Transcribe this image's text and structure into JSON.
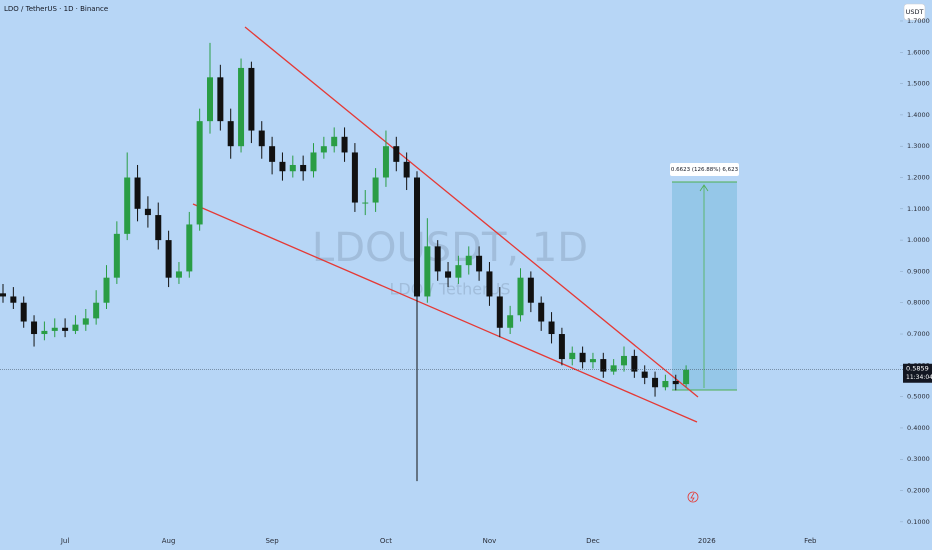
{
  "chart_data": {
    "type": "candlestick",
    "title": "LDO / TetherUS · 1D · Binance",
    "currency": "USDT",
    "watermark": "LDOUSDT, 1D",
    "watermark_subtitle": "LDO / TetherUS",
    "countdown": "11:34:04",
    "measure_label": "0.6623 (126.88%) 6,623",
    "up_color": "#2a9d45",
    "down_color": "#111111",
    "categories": [
      null,
      null,
      null,
      null,
      null,
      null,
      "Jul",
      null,
      null,
      null,
      null,
      null,
      null,
      null,
      null,
      null,
      "Aug",
      null,
      null,
      null,
      null,
      null,
      null,
      null,
      null,
      null,
      "Sep",
      null,
      null,
      null,
      null,
      null,
      null,
      null,
      null,
      null,
      null,
      "Oct",
      null,
      null,
      null,
      null,
      null,
      null,
      null,
      null,
      null,
      "Nov",
      null,
      null,
      null,
      null,
      null,
      null,
      null,
      null,
      null,
      "Dec",
      null,
      null,
      null,
      null,
      null,
      null,
      null,
      null,
      null,
      null,
      "2026",
      null,
      null,
      null,
      null,
      null,
      null,
      null,
      null,
      null,
      "Feb"
    ],
    "open": [
      0.83,
      0.82,
      0.8,
      0.74,
      0.7,
      0.71,
      0.72,
      0.71,
      0.73,
      0.75,
      0.8,
      0.88,
      1.02,
      1.2,
      1.1,
      1.08,
      1.0,
      0.88,
      0.9,
      1.05,
      1.38,
      1.52,
      1.38,
      1.3,
      1.55,
      1.35,
      1.3,
      1.25,
      1.22,
      1.24,
      1.22,
      1.28,
      1.3,
      1.33,
      1.28,
      1.12,
      1.12,
      1.2,
      1.3,
      1.25,
      1.2,
      0.82,
      0.98,
      0.9,
      0.88,
      0.92,
      0.95,
      0.9,
      0.82,
      0.72,
      0.76,
      0.88,
      0.8,
      0.74,
      0.7,
      0.62,
      0.64,
      0.61,
      0.62,
      0.58,
      0.6,
      0.63,
      0.58,
      0.56,
      0.53,
      0.55,
      0.54,
      null,
      null,
      null,
      null,
      null,
      null,
      null,
      null,
      null,
      null,
      null,
      null
    ],
    "high": [
      0.86,
      0.85,
      0.82,
      0.76,
      0.74,
      0.75,
      0.75,
      0.76,
      0.78,
      0.84,
      0.92,
      1.06,
      1.28,
      1.24,
      1.14,
      1.12,
      1.03,
      0.93,
      1.09,
      1.42,
      1.63,
      1.56,
      1.42,
      1.58,
      1.57,
      1.38,
      1.33,
      1.28,
      1.27,
      1.27,
      1.31,
      1.33,
      1.36,
      1.36,
      1.31,
      1.16,
      1.23,
      1.35,
      1.33,
      1.28,
      1.22,
      1.07,
      1.0,
      0.93,
      0.95,
      0.98,
      0.98,
      0.93,
      0.85,
      0.79,
      0.91,
      0.9,
      0.82,
      0.77,
      0.72,
      0.66,
      0.66,
      0.64,
      0.64,
      0.62,
      0.66,
      0.65,
      0.6,
      0.58,
      0.57,
      0.57,
      0.6,
      null,
      null,
      null,
      null,
      null,
      null,
      null,
      null,
      null,
      null,
      null,
      null
    ],
    "low": [
      0.8,
      0.78,
      0.72,
      0.66,
      0.68,
      0.69,
      0.69,
      0.7,
      0.71,
      0.73,
      0.78,
      0.86,
      1.0,
      1.06,
      1.04,
      0.97,
      0.85,
      0.86,
      0.88,
      1.03,
      1.34,
      1.35,
      1.26,
      1.28,
      1.31,
      1.26,
      1.21,
      1.19,
      1.2,
      1.19,
      1.2,
      1.26,
      1.28,
      1.25,
      1.09,
      1.08,
      1.09,
      1.17,
      1.22,
      1.16,
      0.23,
      0.8,
      0.87,
      0.85,
      0.86,
      0.89,
      0.87,
      0.79,
      0.69,
      0.7,
      0.74,
      0.77,
      0.71,
      0.67,
      0.6,
      0.6,
      0.59,
      0.59,
      0.56,
      0.57,
      0.58,
      0.56,
      0.54,
      0.5,
      0.52,
      0.52,
      0.53,
      null,
      null,
      null,
      null,
      null,
      null,
      null,
      null,
      null,
      null,
      null,
      null
    ],
    "close": [
      0.82,
      0.8,
      0.74,
      0.7,
      0.71,
      0.72,
      0.71,
      0.73,
      0.75,
      0.8,
      0.88,
      1.02,
      1.2,
      1.1,
      1.08,
      1.0,
      0.88,
      0.9,
      1.05,
      1.38,
      1.52,
      1.38,
      1.3,
      1.55,
      1.35,
      1.3,
      1.25,
      1.22,
      1.24,
      1.22,
      1.28,
      1.3,
      1.33,
      1.28,
      1.12,
      1.12,
      1.2,
      1.3,
      1.25,
      1.2,
      0.82,
      0.98,
      0.9,
      0.88,
      0.92,
      0.95,
      0.9,
      0.82,
      0.72,
      0.76,
      0.88,
      0.8,
      0.74,
      0.7,
      0.62,
      0.64,
      0.61,
      0.62,
      0.58,
      0.6,
      0.63,
      0.58,
      0.56,
      0.53,
      0.55,
      0.54,
      0.5859,
      null,
      null,
      null,
      null,
      null,
      null,
      null,
      null,
      null,
      null,
      null,
      null
    ],
    "ylim": [
      0.074,
      1.767
    ],
    "yticks": [
      {
        "value": 0.1,
        "label": "0.1000"
      },
      {
        "value": 0.2,
        "label": "0.2000"
      },
      {
        "value": 0.3,
        "label": "0.3000"
      },
      {
        "value": 0.4,
        "label": "0.4000"
      },
      {
        "value": 0.5,
        "label": "0.5000"
      },
      {
        "value": 0.6,
        "label": "0.6000"
      },
      {
        "value": 0.7,
        "label": "0.7000"
      },
      {
        "value": 0.8,
        "label": "0.8000"
      },
      {
        "value": 0.9,
        "label": "0.9000"
      },
      {
        "value": 1.0,
        "label": "1.0000"
      },
      {
        "value": 1.1,
        "label": "1.1000"
      },
      {
        "value": 1.2,
        "label": "1.2000"
      },
      {
        "value": 1.3,
        "label": "1.3000"
      },
      {
        "value": 1.4,
        "label": "1.4000"
      },
      {
        "value": 1.5,
        "label": "1.5000"
      },
      {
        "value": 1.6,
        "label": "1.6000"
      },
      {
        "value": 1.7,
        "label": "1.7000"
      }
    ],
    "grid": false
  }
}
